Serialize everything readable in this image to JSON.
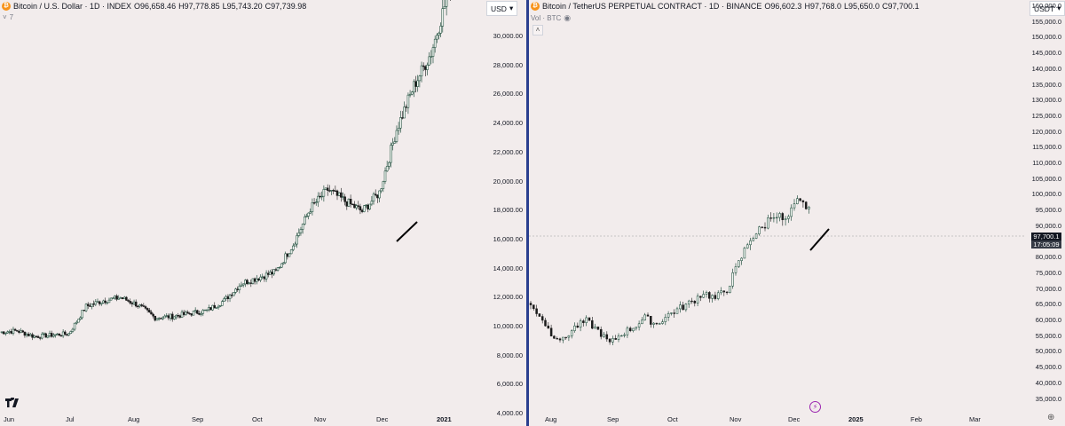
{
  "left_chart": {
    "symbol": "Bitcoin / U.S. Dollar · 1D · INDEX",
    "ohlc": {
      "o": "O96,658.46",
      "h": "H97,778.85",
      "l": "L95,743.20",
      "c": "C97,739.98"
    },
    "indicator_count": "7",
    "currency": "USD",
    "y_ticks": [
      "30,000.00",
      "28,000.00",
      "26,000.00",
      "24,000.00",
      "22,000.00",
      "20,000.00",
      "18,000.00",
      "16,000.00",
      "14,000.00",
      "12,000.00",
      "10,000.00",
      "8,000.00",
      "6,000.00",
      "4,000.00"
    ],
    "x_ticks": [
      "Jun",
      "Jul",
      "Aug",
      "Sep",
      "Oct",
      "Nov",
      "Dec",
      "2021"
    ]
  },
  "right_chart": {
    "symbol": "Bitcoin / TetherUS PERPETUAL CONTRACT · 1D · BINANCE",
    "ohlc": {
      "o": "O96,602.3",
      "h": "H97,768.0",
      "l": "L95,650.0",
      "c": "C97,700.1"
    },
    "volume_label": "Vol · BTC",
    "currency": "USDT",
    "current_price": "97,700.1",
    "countdown": "17:05:09",
    "y_ticks": [
      "160,000.0",
      "155,000.0",
      "150,000.0",
      "145,000.0",
      "140,000.0",
      "135,000.0",
      "130,000.0",
      "125,000.0",
      "120,000.0",
      "115,000.0",
      "110,000.0",
      "105,000.0",
      "100,000.0",
      "95,000.0",
      "90,000.0",
      "85,000.0",
      "80,000.0",
      "75,000.0",
      "70,000.0",
      "65,000.0",
      "60,000.0",
      "55,000.0",
      "50,000.0",
      "45,000.0",
      "40,000.0",
      "35,000.0"
    ],
    "x_ticks": [
      "Aug",
      "Sep",
      "Oct",
      "Nov",
      "Dec",
      "2025",
      "Feb",
      "Mar"
    ]
  },
  "colors": {
    "up": "#0b3d2b",
    "down": "#1b1b1b",
    "background": "#f2ecec",
    "divider": "#2a3f8f"
  }
}
